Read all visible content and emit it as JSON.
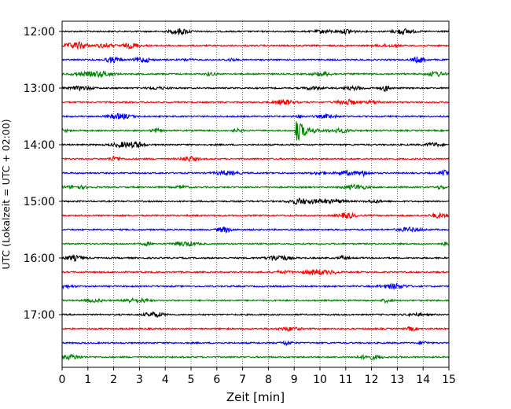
{
  "chart_data": {
    "type": "line",
    "plot_kind": "helicorder",
    "xlabel": "Zeit  [min]",
    "ylabel": "UTC (Lokalzeit = UTC + 02:00)",
    "xlim": [
      0,
      15
    ],
    "x_ticks": [
      "0",
      "1",
      "2",
      "3",
      "4",
      "5",
      "6",
      "7",
      "8",
      "9",
      "10",
      "11",
      "12",
      "13",
      "14",
      "15"
    ],
    "y_ticks": [
      "12:00",
      "13:00",
      "14:00",
      "15:00",
      "16:00",
      "17:00"
    ],
    "grid": "vertical dotted at each minute",
    "trace_interval_minutes": 15,
    "trace_start": "12:00",
    "trace_colors": [
      "#000000",
      "#ff0000",
      "#0000ff",
      "#008000"
    ],
    "trace_count": 24,
    "notable_event": {
      "trace_start": "13:45",
      "minute": 9.1,
      "description": "large amplitude spike"
    }
  }
}
